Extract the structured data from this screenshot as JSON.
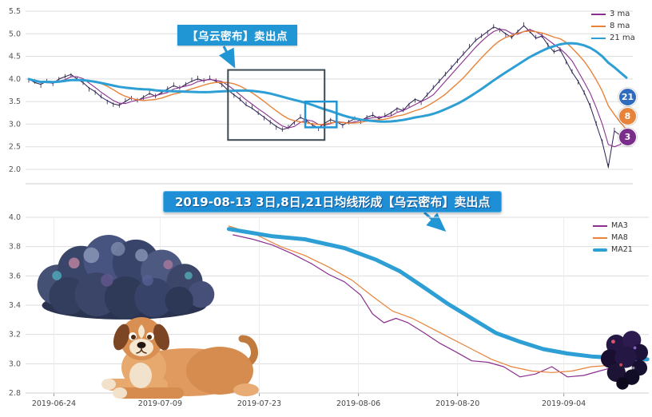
{
  "colors": {
    "price": "#2b1f4e",
    "ma3": "#8b2f8f",
    "ma8": "#e8833a",
    "ma21": "#2e9fd4",
    "accent": "#2196d4",
    "grid": "#dddddd"
  },
  "annotations": {
    "callout_text": "【乌云密布】卖出点",
    "banner_text": "2019-08-13 3日,8日,21日均线形成【乌云密布】卖出点",
    "badges": [
      {
        "label": "21",
        "value": 3.6,
        "color": "#2f6cc0"
      },
      {
        "label": "8",
        "value": 3.17,
        "color": "#e8833a"
      },
      {
        "label": "3",
        "value": 2.72,
        "color": "#7b2d8b"
      }
    ]
  },
  "chart_data": [
    {
      "type": "line",
      "title": "",
      "xlabel": "",
      "ylabel": "",
      "ylim": [
        2.0,
        5.5
      ],
      "y_ticks": [
        5.5,
        5.0,
        4.5,
        4.0,
        3.5,
        3.0,
        2.5,
        2.0
      ],
      "grid": "horizontal",
      "legend_position": "upper right",
      "legend": [
        {
          "label": "3 ma",
          "color": "#8b2f8f"
        },
        {
          "label": "8 ma",
          "color": "#e8833a"
        },
        {
          "label": "21 ma",
          "color": "#2e9fd4"
        }
      ],
      "series_note": "daily close price; MA3/MA8/MA21 are rolling means of close",
      "close": [
        4.0,
        3.92,
        3.88,
        3.95,
        3.9,
        4.0,
        4.05,
        4.1,
        4.0,
        3.92,
        3.8,
        3.72,
        3.6,
        3.52,
        3.45,
        3.42,
        3.5,
        3.58,
        3.52,
        3.6,
        3.68,
        3.62,
        3.7,
        3.78,
        3.85,
        3.8,
        3.88,
        3.95,
        4.0,
        3.96,
        4.0,
        3.95,
        3.88,
        3.75,
        3.65,
        3.55,
        3.42,
        3.35,
        3.25,
        3.15,
        3.05,
        2.95,
        2.88,
        2.92,
        3.05,
        3.15,
        3.08,
        2.98,
        2.92,
        3.02,
        3.1,
        3.05,
        2.98,
        3.05,
        3.12,
        3.08,
        3.15,
        3.2,
        3.12,
        3.18,
        3.25,
        3.35,
        3.3,
        3.45,
        3.55,
        3.5,
        3.65,
        3.8,
        3.95,
        4.1,
        4.25,
        4.4,
        4.55,
        4.7,
        4.85,
        4.95,
        5.05,
        5.15,
        5.1,
        5.0,
        4.92,
        5.05,
        5.18,
        5.05,
        4.9,
        4.95,
        4.75,
        4.6,
        4.65,
        4.4,
        4.15,
        3.95,
        3.7,
        3.4,
        3.0,
        2.6,
        2.05,
        2.85,
        2.75,
        2.7
      ],
      "ma_windows": [
        3,
        8,
        21
      ],
      "highlight_boxes": [
        {
          "name": "dark-cloud-region-box",
          "x0": 33,
          "x1": 49,
          "y0": 2.65,
          "y1": 4.2,
          "color": "#3b4a52",
          "stroke": 2
        },
        {
          "name": "sell-signal-zoom-box",
          "x0": 45.8,
          "x1": 51.0,
          "y0": 2.93,
          "y1": 3.5,
          "color": "#2196d4",
          "stroke": 2.5
        }
      ]
    },
    {
      "type": "line",
      "title": "",
      "xlabel": "",
      "ylabel": "",
      "ylim": [
        2.8,
        4.0
      ],
      "y_ticks": [
        4.0,
        3.8,
        3.6,
        3.4,
        3.2,
        3.0,
        2.8
      ],
      "x_domain": [
        0,
        88
      ],
      "x_ticks": [
        {
          "pos": 4,
          "label": "2019-06-24"
        },
        {
          "pos": 19,
          "label": "2019-07-09"
        },
        {
          "pos": 33,
          "label": "2019-07-23"
        },
        {
          "pos": 47,
          "label": "2019-08-06"
        },
        {
          "pos": 61,
          "label": "2019-08-20"
        },
        {
          "pos": 76,
          "label": "2019-09-04"
        }
      ],
      "legend_position": "upper right",
      "legend": [
        {
          "label": "MA3",
          "color": "#8b2f8f"
        },
        {
          "label": "MA8",
          "color": "#e8833a"
        },
        {
          "label": "MA21",
          "color": "#2e9fd4"
        }
      ],
      "series": [
        {
          "name": "MA3",
          "color": "#8b2f8f",
          "width": 1.2,
          "x": [
            29.3,
            32.1,
            34.9,
            37.7,
            40.5,
            42.8,
            45.0,
            47.3,
            49.0,
            50.6,
            52.3,
            54.0,
            56.3,
            58.5,
            60.8,
            63.0,
            65.3,
            67.5,
            69.8,
            72.0,
            74.3,
            76.5,
            78.8,
            81.0,
            83.3,
            85.5,
            87.8
          ],
          "y": [
            3.88,
            3.85,
            3.81,
            3.75,
            3.68,
            3.61,
            3.56,
            3.47,
            3.34,
            3.28,
            3.31,
            3.28,
            3.21,
            3.14,
            3.08,
            3.02,
            3.01,
            2.98,
            2.91,
            2.93,
            2.98,
            2.91,
            2.92,
            2.95,
            2.98,
            3.01,
            3.04
          ]
        },
        {
          "name": "MA8",
          "color": "#e8833a",
          "width": 1.2,
          "x": [
            28.7,
            32.6,
            36.0,
            39.4,
            42.8,
            46.1,
            49.0,
            51.8,
            54.6,
            57.4,
            60.2,
            63.0,
            65.8,
            68.6,
            71.5,
            74.3,
            77.1,
            79.9,
            82.7,
            85.5,
            87.8
          ],
          "y": [
            3.94,
            3.88,
            3.8,
            3.74,
            3.66,
            3.57,
            3.46,
            3.36,
            3.31,
            3.24,
            3.17,
            3.1,
            3.03,
            2.98,
            2.95,
            2.94,
            2.95,
            2.98,
            2.99,
            3.01,
            3.02
          ]
        },
        {
          "name": "MA21",
          "color": "#2e9fd4",
          "width": 5,
          "x": [
            28.7,
            34.9,
            39.4,
            45.0,
            49.5,
            52.9,
            56.3,
            59.6,
            63.0,
            66.4,
            69.8,
            73.1,
            76.5,
            79.9,
            83.3,
            87.8
          ],
          "y": [
            3.92,
            3.87,
            3.85,
            3.79,
            3.71,
            3.63,
            3.52,
            3.41,
            3.31,
            3.21,
            3.15,
            3.1,
            3.07,
            3.05,
            3.04,
            3.03
          ]
        }
      ]
    }
  ]
}
